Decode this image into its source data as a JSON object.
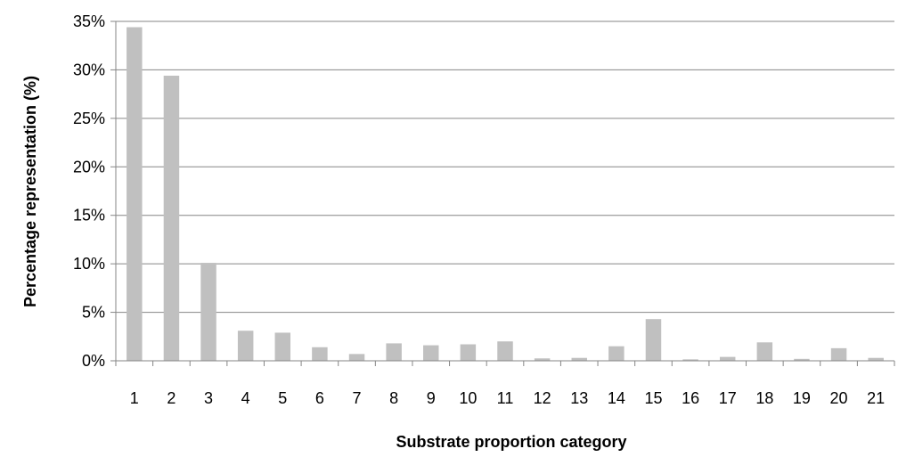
{
  "chart_data": {
    "type": "bar",
    "title": "",
    "xlabel": "Substrate proportion category",
    "ylabel": "Percentage representation (%)",
    "categories": [
      "1",
      "2",
      "3",
      "4",
      "5",
      "6",
      "7",
      "8",
      "9",
      "10",
      "11",
      "12",
      "13",
      "14",
      "15",
      "16",
      "17",
      "18",
      "19",
      "20",
      "21"
    ],
    "values": [
      34.4,
      29.4,
      10.1,
      3.1,
      2.9,
      1.4,
      0.7,
      1.8,
      1.6,
      1.7,
      2.0,
      0.25,
      0.3,
      1.5,
      4.3,
      0.15,
      0.4,
      1.9,
      0.2,
      1.3,
      0.3
    ],
    "ylim": [
      0,
      35
    ],
    "yticks": [
      "0%",
      "5%",
      "10%",
      "15%",
      "20%",
      "25%",
      "30%",
      "35%"
    ],
    "grid": true,
    "legend": "none",
    "bar_color": "#c0c0c0",
    "grid_color": "#868686"
  }
}
